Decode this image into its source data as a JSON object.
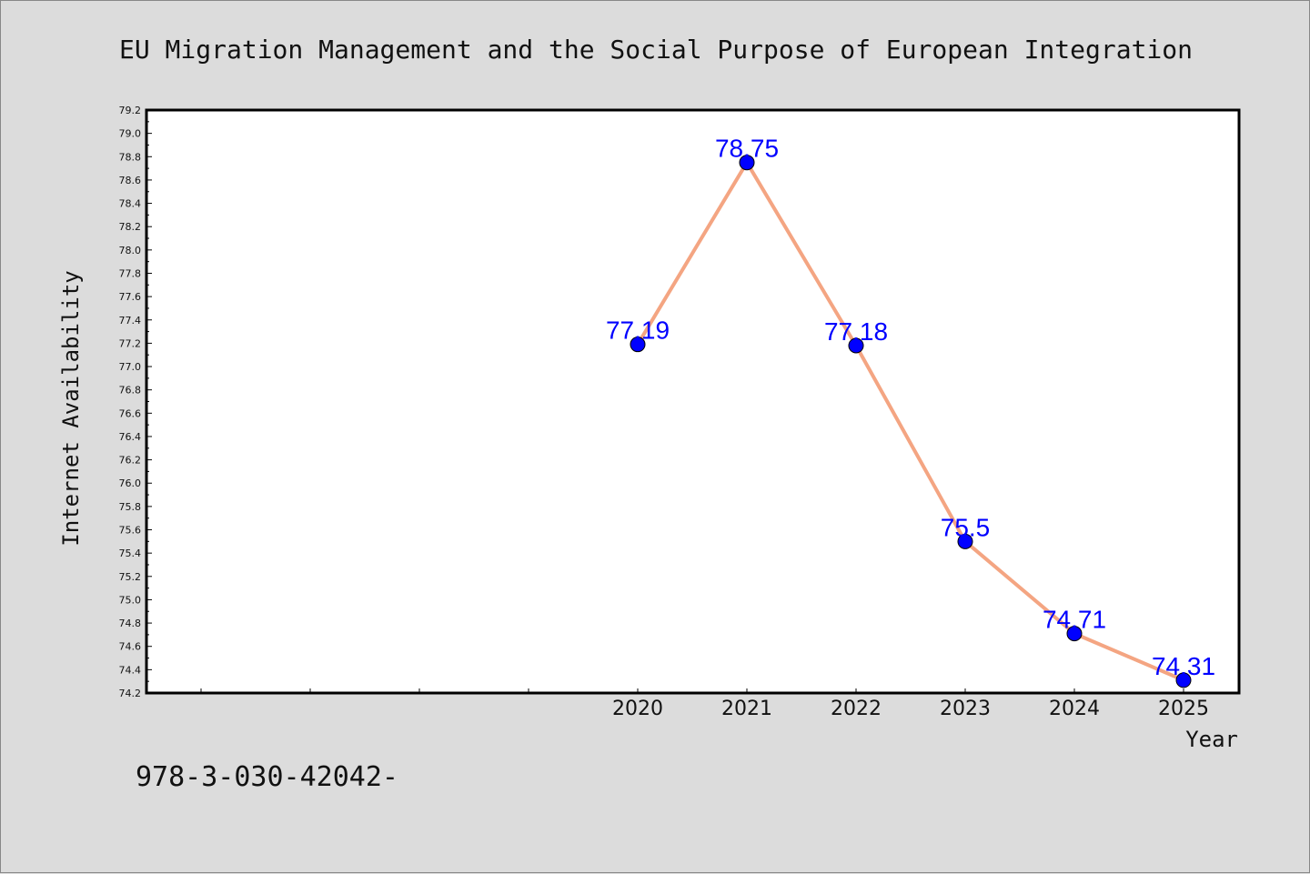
{
  "chart_data": {
    "type": "line",
    "title": "EU Migration Management and the Social Purpose of European Integration",
    "xlabel": "Year",
    "ylabel": "Internet Availability",
    "x": [
      "2020",
      "2021",
      "2022",
      "2023",
      "2024",
      "2025"
    ],
    "series": [
      {
        "values": [
          77.19,
          78.75,
          77.18,
          75.5,
          74.71,
          74.31
        ],
        "labels": [
          "77.19",
          "78.75",
          "77.18",
          "75.5",
          "74.71",
          "74.31"
        ],
        "line_color": "#f4a582",
        "marker_color": "#0000ff"
      }
    ],
    "ylim": [
      74.2,
      79.2
    ],
    "y_ticks": [
      "74.2",
      "74.4",
      "74.6",
      "74.8",
      "75.0",
      "75.2",
      "75.4",
      "75.6",
      "75.8",
      "76.0",
      "76.2",
      "76.4",
      "76.6",
      "76.8",
      "77.0",
      "77.2",
      "77.4",
      "77.6",
      "77.8",
      "78.0",
      "78.2",
      "78.4",
      "78.6",
      "78.8",
      "79.0",
      "79.2"
    ],
    "grid": false,
    "legend": "none"
  },
  "footnote": "978-3-030-42042-"
}
